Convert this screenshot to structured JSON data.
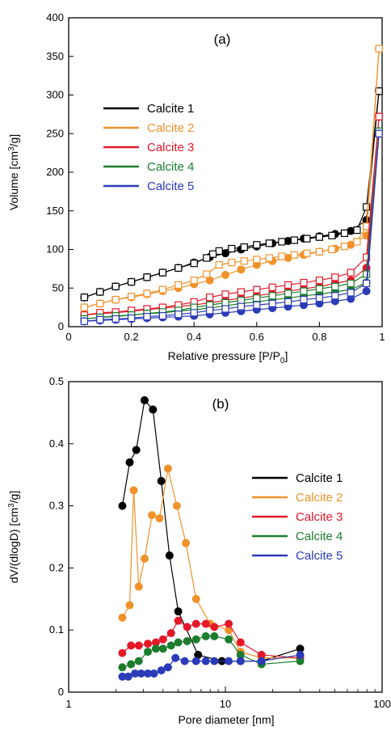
{
  "colors": {
    "Calcite 1": "#000000",
    "Calcite 2": "#f0922a",
    "Calcite 3": "#e3192a",
    "Calcite 4": "#1c7d2e",
    "Calcite 5": "#2b3bb8"
  },
  "chart_data": [
    {
      "type": "scatter",
      "panel_label": "(a)",
      "xlabel": "Relative pressure [P/P0]",
      "xlabel_main": "Relative pressure [P/P",
      "xlabel_sub": "0",
      "xlabel_end": "]",
      "ylabel": "Volume [cm3/g]",
      "ylabel_main": "Volume [cm",
      "ylabel_sup": "3",
      "ylabel_end": "/g]",
      "xlim": [
        0,
        1
      ],
      "ylim": [
        0,
        400
      ],
      "xticks": [
        0,
        0.2,
        0.4,
        0.6,
        0.8,
        1
      ],
      "xtick_labels": [
        "0",
        "0.2",
        "0.4",
        "0.6",
        "0.8",
        "1"
      ],
      "yticks": [
        0,
        50,
        100,
        150,
        200,
        250,
        300,
        350,
        400
      ],
      "ytick_labels": [
        "0",
        "50",
        "100",
        "150",
        "200",
        "250",
        "300",
        "350",
        "400"
      ],
      "legend_position": "left",
      "series": [
        {
          "name": "Calcite 1",
          "adsorption": {
            "x": [
              0.05,
              0.1,
              0.15,
              0.2,
              0.25,
              0.3,
              0.35,
              0.4,
              0.45,
              0.5,
              0.55,
              0.6,
              0.65,
              0.7,
              0.75,
              0.8,
              0.85,
              0.9,
              0.95,
              0.99
            ],
            "y": [
              38,
              45,
              52,
              58,
              64,
              70,
              76,
              83,
              90,
              95,
              100,
              104,
              108,
              111,
              114,
              117,
              120,
              124,
              138,
              305
            ]
          },
          "desorption": {
            "x": [
              0.99,
              0.95,
              0.92,
              0.88,
              0.84,
              0.8,
              0.76,
              0.72,
              0.68,
              0.64,
              0.6,
              0.56,
              0.52,
              0.48,
              0.46,
              0.44,
              0.4,
              0.35,
              0.3,
              0.25,
              0.2,
              0.15,
              0.1,
              0.05
            ],
            "y": [
              305,
              155,
              125,
              121,
              118,
              116,
              114,
              112,
              110,
              108,
              106,
              103,
              101,
              98,
              94,
              89,
              82,
              76,
              70,
              64,
              58,
              52,
              45,
              38
            ]
          }
        },
        {
          "name": "Calcite 2",
          "adsorption": {
            "x": [
              0.05,
              0.1,
              0.15,
              0.2,
              0.25,
              0.3,
              0.35,
              0.4,
              0.45,
              0.5,
              0.55,
              0.6,
              0.65,
              0.7,
              0.75,
              0.8,
              0.85,
              0.9,
              0.95,
              0.99
            ],
            "y": [
              25,
              30,
              35,
              38,
              42,
              46,
              50,
              55,
              60,
              67,
              74,
              80,
              85,
              89,
              93,
              97,
              101,
              106,
              118,
              360
            ]
          },
          "desorption": {
            "x": [
              0.99,
              0.95,
              0.92,
              0.88,
              0.84,
              0.8,
              0.76,
              0.72,
              0.68,
              0.64,
              0.6,
              0.56,
              0.52,
              0.48,
              0.44,
              0.4,
              0.35,
              0.3,
              0.25,
              0.2,
              0.15,
              0.1,
              0.05
            ],
            "y": [
              360,
              130,
              110,
              104,
              100,
              97,
              95,
              93,
              91,
              89,
              87,
              85,
              83,
              80,
              68,
              60,
              54,
              48,
              43,
              39,
              35,
              30,
              25
            ]
          }
        },
        {
          "name": "Calcite 3",
          "adsorption": {
            "x": [
              0.05,
              0.1,
              0.15,
              0.2,
              0.25,
              0.3,
              0.35,
              0.4,
              0.45,
              0.5,
              0.55,
              0.6,
              0.65,
              0.7,
              0.75,
              0.8,
              0.85,
              0.9,
              0.95,
              0.99
            ],
            "y": [
              15,
              17,
              18,
              20,
              22,
              24,
              26,
              28,
              31,
              34,
              37,
              40,
              43,
              46,
              49,
              52,
              56,
              60,
              76,
              272
            ]
          },
          "desorption": {
            "x": [
              0.99,
              0.95,
              0.9,
              0.85,
              0.8,
              0.75,
              0.7,
              0.65,
              0.6,
              0.55,
              0.5,
              0.45,
              0.4,
              0.35,
              0.3,
              0.25,
              0.2,
              0.15,
              0.1,
              0.05
            ],
            "y": [
              272,
              90,
              70,
              64,
              60,
              57,
              54,
              51,
              48,
              45,
              42,
              38,
              32,
              28,
              25,
              23,
              21,
              19,
              18,
              15
            ]
          }
        },
        {
          "name": "Calcite 4",
          "adsorption": {
            "x": [
              0.05,
              0.1,
              0.15,
              0.2,
              0.25,
              0.3,
              0.35,
              0.4,
              0.45,
              0.5,
              0.55,
              0.6,
              0.65,
              0.7,
              0.75,
              0.8,
              0.85,
              0.9,
              0.95,
              0.99
            ],
            "y": [
              10,
              12,
              13,
              15,
              17,
              18,
              20,
              22,
              24,
              27,
              30,
              32,
              35,
              37,
              40,
              42,
              45,
              48,
              57,
              253
            ]
          },
          "desorption": {
            "x": [
              0.99,
              0.95,
              0.9,
              0.85,
              0.8,
              0.75,
              0.7,
              0.65,
              0.6,
              0.55,
              0.5,
              0.45,
              0.4,
              0.35,
              0.3,
              0.25,
              0.2,
              0.15,
              0.1,
              0.05
            ],
            "y": [
              253,
              68,
              56,
              52,
              49,
              46,
              43,
              40,
              37,
              34,
              31,
              28,
              25,
              21,
              19,
              17,
              15,
              14,
              12,
              10
            ]
          }
        },
        {
          "name": "Calcite 5",
          "adsorption": {
            "x": [
              0.05,
              0.1,
              0.15,
              0.2,
              0.25,
              0.3,
              0.35,
              0.4,
              0.45,
              0.5,
              0.55,
              0.6,
              0.65,
              0.7,
              0.75,
              0.8,
              0.85,
              0.9,
              0.95,
              0.99
            ],
            "y": [
              7,
              8,
              9,
              10,
              11,
              12,
              13,
              14,
              16,
              18,
              20,
              22,
              24,
              26,
              28,
              30,
              33,
              36,
              46,
              250
            ]
          },
          "desorption": {
            "x": [
              0.99,
              0.95,
              0.9,
              0.85,
              0.8,
              0.75,
              0.7,
              0.65,
              0.6,
              0.55,
              0.5,
              0.45,
              0.4,
              0.35,
              0.3,
              0.25,
              0.2,
              0.15,
              0.1,
              0.05
            ],
            "y": [
              250,
              56,
              44,
              40,
              37,
              35,
              32,
              30,
              28,
              26,
              23,
              21,
              18,
              16,
              14,
              13,
              11,
              10,
              9,
              7
            ]
          }
        }
      ]
    },
    {
      "type": "line",
      "panel_label": "(b)",
      "xlabel": "Pore diameter [nm]",
      "ylabel": "dV/(dlogD) [cm3/g]",
      "ylabel_main": "dV/(dlogD) [cm",
      "ylabel_sup": "3",
      "ylabel_end": "/g]",
      "xscale": "log",
      "xlim": [
        1,
        100
      ],
      "ylim": [
        0,
        0.5
      ],
      "xticks": [
        1,
        10,
        100
      ],
      "xtick_labels": [
        "1",
        "10",
        "100"
      ],
      "yticks": [
        0,
        0.1,
        0.2,
        0.3,
        0.4,
        0.5
      ],
      "ytick_labels": [
        "0",
        "0.1",
        "0.2",
        "0.3",
        "0.4",
        "0.5"
      ],
      "legend_position": "right",
      "series": [
        {
          "name": "Calcite 1",
          "x": [
            2.2,
            2.45,
            2.7,
            3.05,
            3.45,
            3.9,
            4.4,
            5.0,
            6.7,
            9.5,
            12.5,
            17.0,
            30.0
          ],
          "y": [
            0.3,
            0.37,
            0.39,
            0.47,
            0.455,
            0.34,
            0.22,
            0.13,
            0.06,
            0.05,
            0.05,
            0.05,
            0.07
          ]
        },
        {
          "name": "Calcite 2",
          "x": [
            2.2,
            2.45,
            2.6,
            2.8,
            3.05,
            3.4,
            3.8,
            4.3,
            4.9,
            5.6,
            6.5,
            8.0,
            10.5,
            12.5,
            17.0,
            30.0
          ],
          "y": [
            0.12,
            0.14,
            0.325,
            0.17,
            0.215,
            0.285,
            0.28,
            0.36,
            0.3,
            0.24,
            0.15,
            0.11,
            0.1,
            0.065,
            0.055,
            0.055
          ]
        },
        {
          "name": "Calcite 3",
          "x": [
            2.2,
            2.5,
            2.8,
            3.2,
            3.6,
            4.0,
            4.5,
            5.0,
            5.7,
            6.5,
            7.5,
            8.5,
            10.5,
            12.5,
            17.0,
            30.0
          ],
          "y": [
            0.063,
            0.075,
            0.075,
            0.078,
            0.08,
            0.085,
            0.095,
            0.115,
            0.105,
            0.11,
            0.11,
            0.105,
            0.11,
            0.08,
            0.06,
            0.055
          ]
        },
        {
          "name": "Calcite 4",
          "x": [
            2.2,
            2.5,
            2.8,
            3.2,
            3.6,
            4.0,
            4.5,
            5.0,
            5.7,
            6.5,
            7.5,
            8.5,
            10.5,
            12.5,
            17.0,
            30.0
          ],
          "y": [
            0.04,
            0.045,
            0.05,
            0.065,
            0.07,
            0.07,
            0.075,
            0.08,
            0.082,
            0.085,
            0.09,
            0.09,
            0.085,
            0.06,
            0.045,
            0.05
          ]
        },
        {
          "name": "Calcite 5",
          "x": [
            2.2,
            2.4,
            2.65,
            2.9,
            3.2,
            3.5,
            3.9,
            4.3,
            4.8,
            5.5,
            6.5,
            7.5,
            8.5,
            10.5,
            12.5,
            17.0,
            30.0
          ],
          "y": [
            0.025,
            0.025,
            0.03,
            0.03,
            0.03,
            0.03,
            0.035,
            0.04,
            0.055,
            0.05,
            0.05,
            0.05,
            0.05,
            0.05,
            0.05,
            0.05,
            0.06
          ]
        }
      ]
    }
  ]
}
